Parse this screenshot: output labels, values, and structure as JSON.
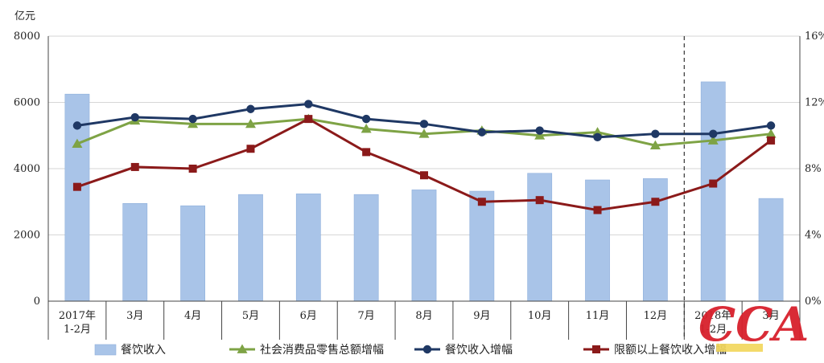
{
  "chart_data": {
    "type": "bar+line",
    "unit_left": "亿元",
    "categories": [
      [
        "2017年",
        "1-2月"
      ],
      [
        "3月"
      ],
      [
        "4月"
      ],
      [
        "5月"
      ],
      [
        "6月"
      ],
      [
        "7月"
      ],
      [
        "8月"
      ],
      [
        "9月"
      ],
      [
        "10月"
      ],
      [
        "11月"
      ],
      [
        "12月"
      ],
      [
        "2018年",
        "1-2月"
      ],
      [
        "3月"
      ]
    ],
    "y_left": {
      "min": 0,
      "max": 8000,
      "ticks": [
        "0",
        "2000",
        "4000",
        "6000",
        "8000"
      ]
    },
    "y_right": {
      "min": 0,
      "max": 16,
      "ticks": [
        "0%",
        "4%",
        "8%",
        "12%",
        "16%"
      ]
    },
    "bars": {
      "name": "餐饮收入",
      "color": "#a9c4e8",
      "values": [
        6250,
        2950,
        2880,
        3220,
        3240,
        3220,
        3360,
        3320,
        3860,
        3660,
        3700,
        6620,
        3100
      ]
    },
    "lines": [
      {
        "name": "社会消费品零售总额增幅",
        "color": "#7ea345",
        "marker": "triangle",
        "values": [
          9.5,
          10.9,
          10.7,
          10.7,
          11.0,
          10.4,
          10.1,
          10.3,
          10.0,
          10.2,
          9.4,
          9.7,
          10.1
        ]
      },
      {
        "name": "餐饮收入增幅",
        "color": "#1f3864",
        "marker": "circle",
        "values": [
          10.6,
          11.1,
          11.0,
          11.6,
          11.9,
          11.0,
          10.7,
          10.2,
          10.3,
          9.9,
          10.1,
          10.1,
          10.6
        ]
      },
      {
        "name": "限额以上餐饮收入增幅",
        "color": "#8b1a1a",
        "marker": "square",
        "values": [
          6.9,
          8.1,
          8.0,
          9.2,
          11.0,
          9.0,
          7.6,
          6.0,
          6.1,
          5.5,
          6.0,
          7.1,
          9.7
        ]
      }
    ],
    "divider_after_index": 10,
    "grid": true,
    "legend_position": "bottom"
  },
  "watermark": "CCA"
}
